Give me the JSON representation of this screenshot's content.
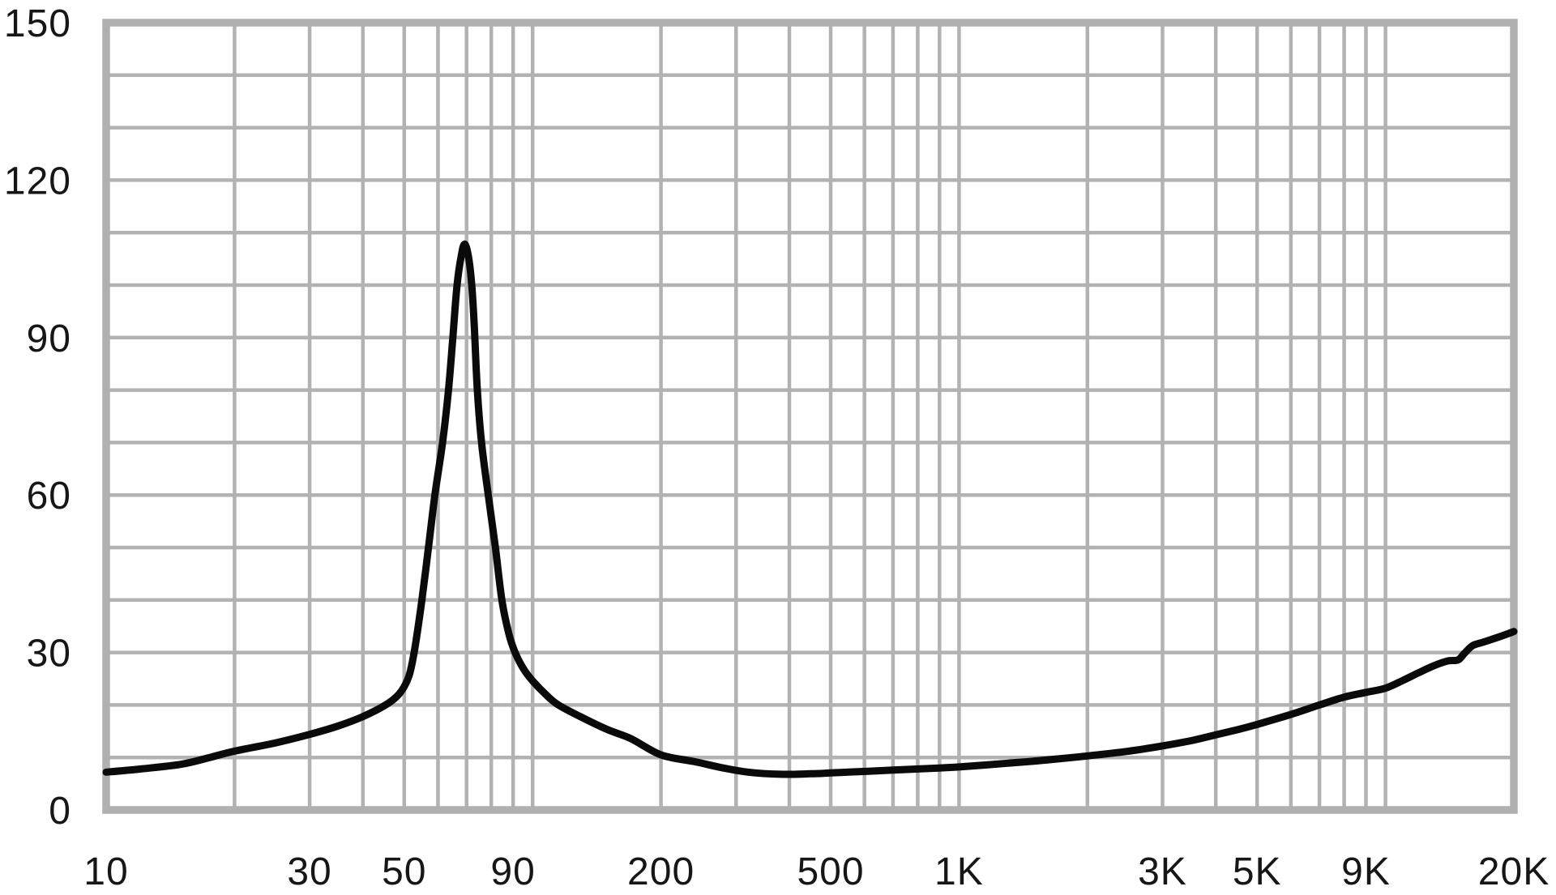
{
  "page": {
    "background": "#ffffff",
    "description": "Impedance magnitude vs frequency plot (log frequency axis), no title or legend"
  },
  "chart_data": {
    "type": "line",
    "title": "",
    "xlabel": "",
    "ylabel": "",
    "grid": true,
    "legend": false,
    "x_axis": {
      "scale": "log",
      "min": 10,
      "max": 20000,
      "tick_labels": [
        "10",
        "30",
        "50",
        "90",
        "200",
        "500",
        "1K",
        "3K",
        "5K",
        "9K",
        "20K"
      ],
      "tick_values": [
        10,
        30,
        50,
        90,
        200,
        500,
        1000,
        3000,
        5000,
        9000,
        20000
      ],
      "gridline_values": [
        20,
        30,
        40,
        50,
        60,
        70,
        80,
        90,
        100,
        200,
        300,
        400,
        500,
        600,
        700,
        800,
        900,
        1000,
        2000,
        3000,
        4000,
        5000,
        6000,
        7000,
        8000,
        9000,
        10000,
        20000
      ]
    },
    "y_axis": {
      "scale": "linear",
      "min": 0,
      "max": 150,
      "tick_labels": [
        "0",
        "30",
        "60",
        "90",
        "120",
        "150"
      ],
      "tick_values": [
        0,
        30,
        60,
        90,
        120,
        150
      ],
      "minor_gridline_step": 10
    },
    "colors": {
      "curve": "#0a0a0a",
      "grid": "#b2b2b2",
      "frame": "#b0b0b0",
      "labels": "#161616",
      "background": "#ffffff"
    },
    "series": [
      {
        "name": "impedance-curve",
        "peak": {
          "frequency_hz": 69,
          "value_ohm": 107.8
        },
        "points": [
          [
            10,
            7.2
          ],
          [
            12,
            7.8
          ],
          [
            15,
            8.7
          ],
          [
            17.5,
            10.0
          ],
          [
            20,
            11.2
          ],
          [
            25,
            12.8
          ],
          [
            30,
            14.4
          ],
          [
            35,
            16.0
          ],
          [
            40,
            17.8
          ],
          [
            45,
            19.9
          ],
          [
            48,
            21.6
          ],
          [
            50,
            23.5
          ],
          [
            51.5,
            26.0
          ],
          [
            53,
            31.0
          ],
          [
            55,
            40.0
          ],
          [
            57,
            50.0
          ],
          [
            59,
            60.0
          ],
          [
            61.5,
            70.0
          ],
          [
            63.5,
            80.0
          ],
          [
            65,
            90.0
          ],
          [
            66.5,
            100.0
          ],
          [
            68,
            105.5
          ],
          [
            69.2,
            107.8
          ],
          [
            70.6,
            105.8
          ],
          [
            72,
            100.0
          ],
          [
            73,
            92.0
          ],
          [
            74.2,
            80.0
          ],
          [
            75.9,
            70.0
          ],
          [
            78.7,
            60.0
          ],
          [
            81.8,
            50.0
          ],
          [
            84.7,
            40.0
          ],
          [
            88,
            33.5
          ],
          [
            91,
            30.0
          ],
          [
            95,
            27.0
          ],
          [
            100,
            24.6
          ],
          [
            108,
            21.8
          ],
          [
            115,
            20.0
          ],
          [
            130,
            17.7
          ],
          [
            150,
            15.3
          ],
          [
            170,
            13.6
          ],
          [
            200,
            10.5
          ],
          [
            240,
            9.2
          ],
          [
            280,
            8.0
          ],
          [
            320,
            7.2
          ],
          [
            380,
            6.8
          ],
          [
            450,
            6.9
          ],
          [
            550,
            7.2
          ],
          [
            700,
            7.6
          ],
          [
            850,
            7.9
          ],
          [
            1000,
            8.2
          ],
          [
            1300,
            8.9
          ],
          [
            1600,
            9.5
          ],
          [
            2000,
            10.3
          ],
          [
            2500,
            11.2
          ],
          [
            3000,
            12.2
          ],
          [
            3500,
            13.2
          ],
          [
            4000,
            14.3
          ],
          [
            4500,
            15.3
          ],
          [
            5000,
            16.3
          ],
          [
            6000,
            18.2
          ],
          [
            7000,
            20.0
          ],
          [
            8000,
            21.5
          ],
          [
            9000,
            22.4
          ],
          [
            10000,
            23.2
          ],
          [
            11000,
            24.7
          ],
          [
            12000,
            26.2
          ],
          [
            13000,
            27.5
          ],
          [
            14000,
            28.4
          ],
          [
            14800,
            28.6
          ],
          [
            15300,
            29.8
          ],
          [
            16000,
            31.3
          ],
          [
            17000,
            32.0
          ],
          [
            18500,
            33.0
          ],
          [
            20000,
            34.0
          ]
        ]
      }
    ]
  }
}
